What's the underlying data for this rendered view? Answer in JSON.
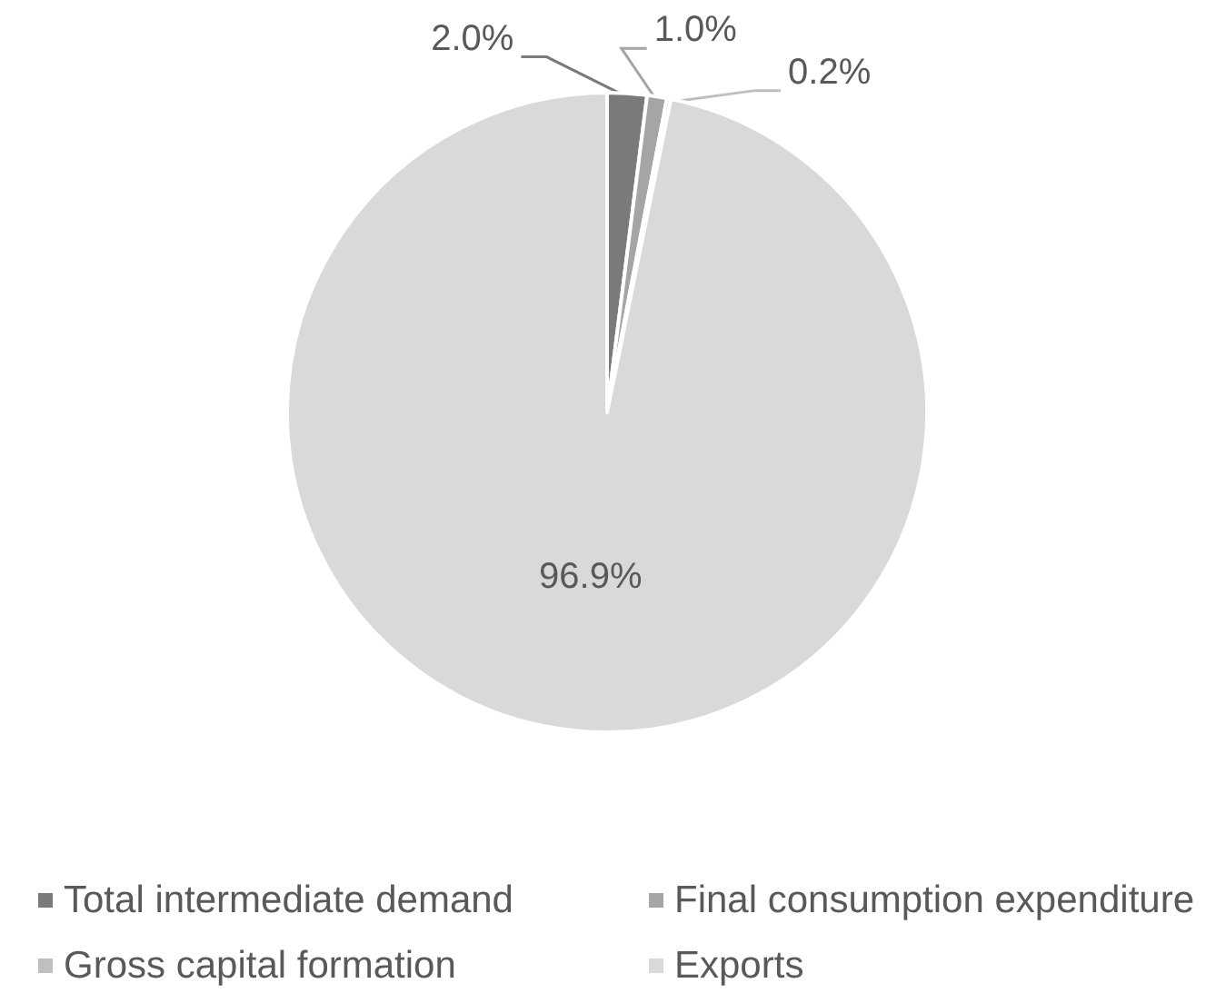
{
  "chart_data": {
    "type": "pie",
    "categories": [
      "Total intermediate demand",
      "Final consumption expenditure",
      "Gross capital formation",
      "Exports"
    ],
    "values": [
      2.0,
      1.0,
      0.2,
      96.9
    ],
    "colors": [
      "#7a7a7a",
      "#a5a5a5",
      "#bfbfbf",
      "#d9d9d9"
    ],
    "value_labels": [
      "2.0%",
      "1.0%",
      "0.2%",
      "96.9%"
    ],
    "legend": "bottom"
  }
}
